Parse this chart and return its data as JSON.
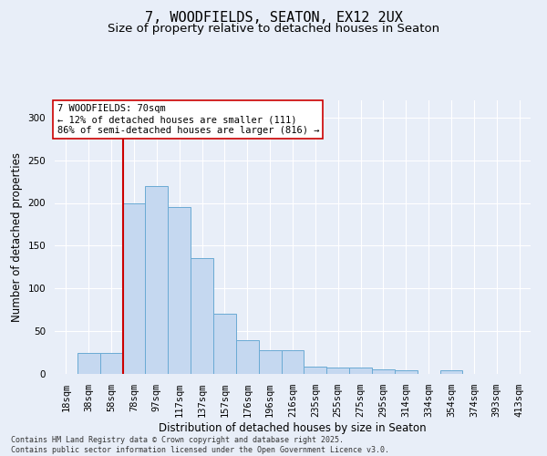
{
  "title_line1": "7, WOODFIELDS, SEATON, EX12 2UX",
  "title_line2": "Size of property relative to detached houses in Seaton",
  "xlabel": "Distribution of detached houses by size in Seaton",
  "ylabel": "Number of detached properties",
  "categories": [
    "18sqm",
    "38sqm",
    "58sqm",
    "78sqm",
    "97sqm",
    "117sqm",
    "137sqm",
    "157sqm",
    "176sqm",
    "196sqm",
    "216sqm",
    "235sqm",
    "255sqm",
    "275sqm",
    "295sqm",
    "314sqm",
    "334sqm",
    "354sqm",
    "374sqm",
    "393sqm",
    "413sqm"
  ],
  "values": [
    0,
    25,
    25,
    200,
    220,
    195,
    135,
    70,
    40,
    28,
    28,
    9,
    8,
    7,
    5,
    4,
    0,
    4,
    0,
    0,
    0
  ],
  "bar_color": "#c5d8f0",
  "bar_edge_color": "#6aaad4",
  "vline_x_index": 3,
  "vline_color": "#cc0000",
  "annotation_text": "7 WOODFIELDS: 70sqm\n← 12% of detached houses are smaller (111)\n86% of semi-detached houses are larger (816) →",
  "annotation_box_color": "#ffffff",
  "annotation_box_edge": "#cc0000",
  "annotation_fontsize": 7.5,
  "ylim": [
    0,
    320
  ],
  "yticks": [
    0,
    50,
    100,
    150,
    200,
    250,
    300
  ],
  "background_color": "#e8eef8",
  "footer_line1": "Contains HM Land Registry data © Crown copyright and database right 2025.",
  "footer_line2": "Contains public sector information licensed under the Open Government Licence v3.0.",
  "title_fontsize": 11,
  "subtitle_fontsize": 9.5,
  "axis_label_fontsize": 8.5,
  "tick_fontsize": 7.5,
  "footer_fontsize": 6
}
